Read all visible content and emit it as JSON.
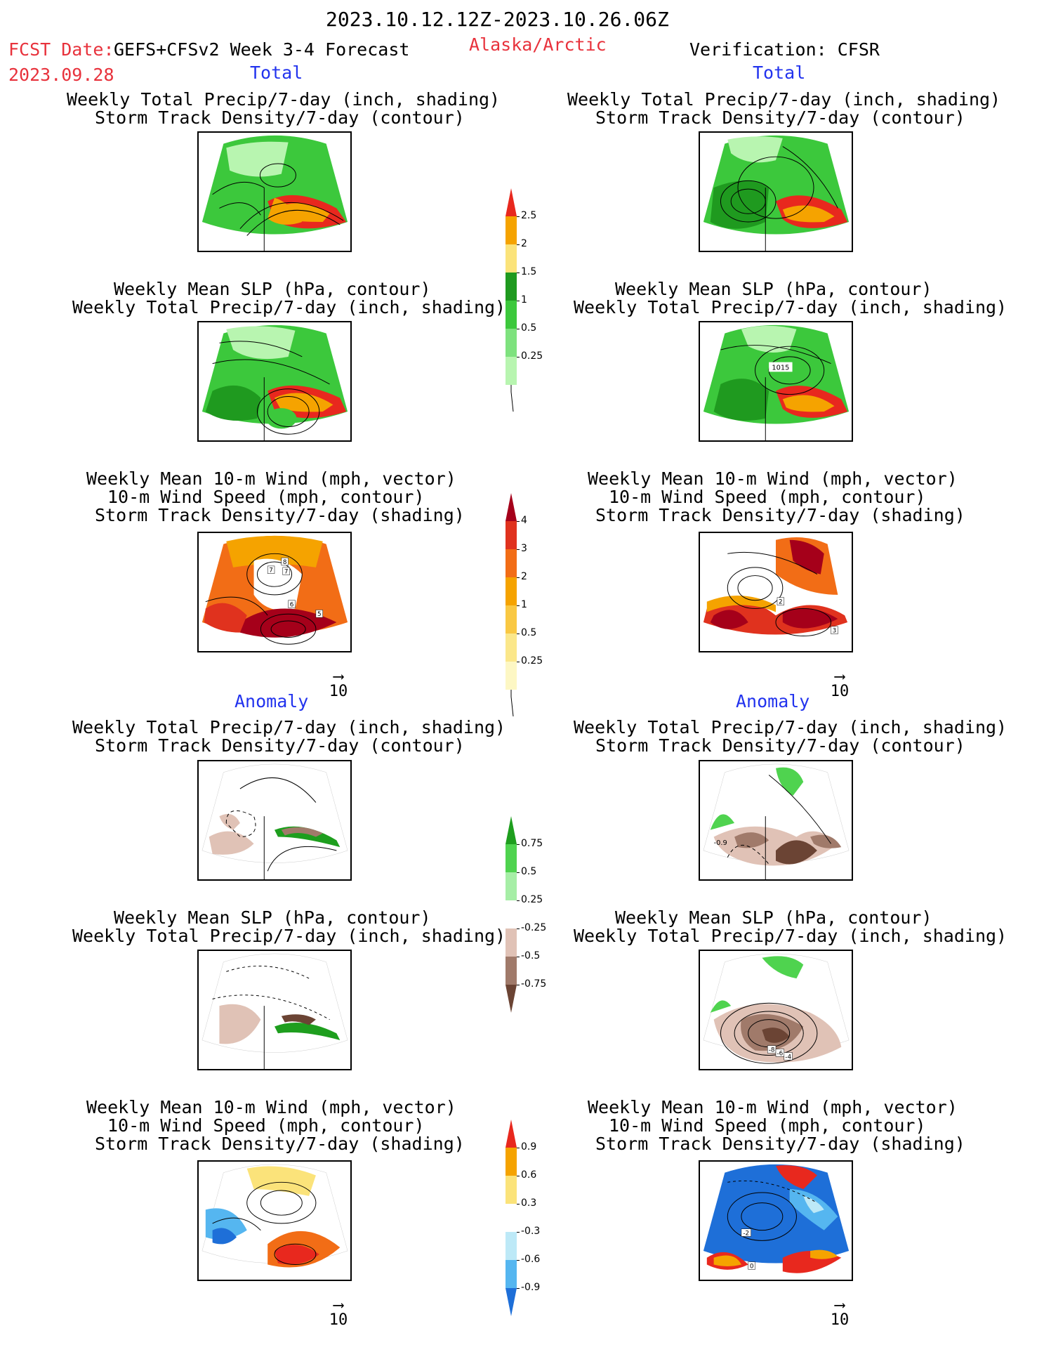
{
  "header": {
    "period": "2023.10.12.12Z-2023.10.26.06Z",
    "fcst_date_label": "FCST Date:",
    "fcst_model": "GEFS+CFSv2 Week 3-4 Forecast",
    "fcst_date": "2023.09.28",
    "region": "Alaska/Arctic",
    "verification": "Verification: CFSR"
  },
  "sections": {
    "total": "Total",
    "anomaly": "Anomaly"
  },
  "titles": {
    "precip_track_1": "Weekly Total Precip/7-day (inch, shading)",
    "precip_track_2": "Storm Track Density/7-day (contour)",
    "slp_precip_1": "Weekly Mean SLP (hPa, contour)",
    "slp_precip_2": "Weekly Total Precip/7-day (inch, shading)",
    "wind_1": "Weekly Mean 10-m Wind (mph, vector)",
    "wind_2": "10-m Wind Speed (mph, contour)",
    "wind_3": "Storm Track Density/7-day (shading)"
  },
  "vector_ref": "10",
  "contour_labels": {
    "slp_obs": "1015",
    "wind_fc_1": "8",
    "wind_fc_2": "7",
    "wind_fc_3": "6",
    "wind_fc_4": "5",
    "wind_fc_5": "3",
    "wind_obs_1": "2",
    "wind_obs_2": "3",
    "precip_anom_obs": "-0.9",
    "slp_anom_obs_1": "-8",
    "slp_anom_obs_2": "-6",
    "slp_anom_obs_3": "-4",
    "wind_anom_obs_1": "-2",
    "wind_anom_obs_2": "0"
  },
  "colorbars": {
    "precip_total": {
      "labels": [
        "2.5",
        "2",
        "1.5",
        "1",
        "0.5",
        "0.25"
      ],
      "colors": [
        "#e8281e",
        "#f5a300",
        "#fbe37a",
        "#1f9a1f",
        "#3cc83c",
        "#7ee27e",
        "#b8f5b0"
      ]
    },
    "track_total": {
      "labels": [
        "4",
        "3",
        "2",
        "1",
        "0.5",
        "0.25"
      ],
      "colors": [
        "#a5001a",
        "#e0321e",
        "#f26d16",
        "#f5a300",
        "#f9c843",
        "#fbe78a",
        "#fdf7c4"
      ]
    },
    "precip_anom": {
      "labels": [
        "0.75",
        "0.5",
        "0.25",
        "-0.25",
        "-0.5",
        "-0.75"
      ],
      "colors": [
        "#1e9e1e",
        "#4fd34f",
        "#a6eea6",
        "#ffffff",
        "#e0c2b6",
        "#a07a6a",
        "#6b4434"
      ]
    },
    "track_anom": {
      "labels": [
        "0.9",
        "0.6",
        "0.3",
        "-0.3",
        "-0.6",
        "-0.9"
      ],
      "colors": [
        "#e8281e",
        "#f5a300",
        "#fbe37a",
        "#ffffff",
        "#bde9f7",
        "#55b6f0",
        "#1e6fd8"
      ]
    }
  }
}
